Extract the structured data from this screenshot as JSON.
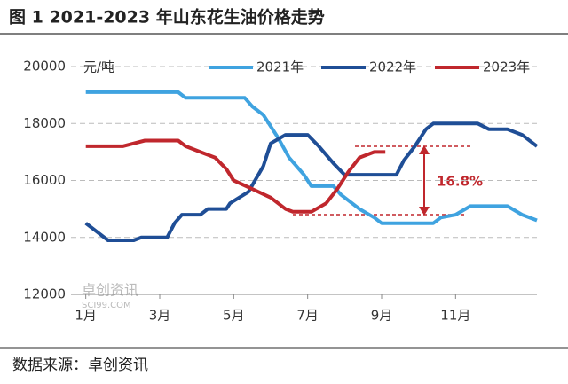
{
  "chart_data": {
    "type": "line",
    "title": "图 1 2021-2023 年山东花生油价格走势",
    "unit": "元/吨",
    "source": "数据来源：卓创资讯",
    "watermark": [
      "卓创资讯",
      "SCI99.COM"
    ],
    "annotation": "16.8%",
    "xlim": [
      0.6,
      13.2
    ],
    "xticks": [
      {
        "value": 1,
        "label": "1月"
      },
      {
        "value": 3,
        "label": "3月"
      },
      {
        "value": 5,
        "label": "5月"
      },
      {
        "value": 7,
        "label": "7月"
      },
      {
        "value": 9,
        "label": "9月"
      },
      {
        "value": 11,
        "label": "11月"
      }
    ],
    "ylim": [
      12000,
      20000
    ],
    "yticks": [
      12000,
      14000,
      16000,
      18000,
      20000
    ],
    "grid": true,
    "series": [
      {
        "name": "2021年",
        "color": "#3fa3e0",
        "x": [
          1,
          3.5,
          3.7,
          5.3,
          5.5,
          5.8,
          6.2,
          6.5,
          6.9,
          7.1,
          7.7,
          7.9,
          8.4,
          8.8,
          9,
          10.4,
          10.6,
          11,
          11.4,
          12.4,
          12.8,
          13.2
        ],
        "values": [
          19100,
          19100,
          18900,
          18900,
          18600,
          18300,
          17500,
          16800,
          16200,
          15800,
          15800,
          15500,
          15000,
          14700,
          14500,
          14500,
          14700,
          14800,
          15100,
          15100,
          14800,
          14600
        ]
      },
      {
        "name": "2022年",
        "color": "#1f4e96",
        "x": [
          1,
          1.3,
          1.6,
          2.3,
          2.5,
          3.2,
          3.4,
          3.6,
          4.1,
          4.3,
          4.8,
          4.9,
          5.4,
          5.8,
          6.0,
          6.4,
          7.0,
          7.3,
          7.7,
          8.0,
          9.4,
          9.6,
          9.9,
          10.2,
          10.4,
          11.6,
          11.9,
          12.4,
          12.8,
          13.2
        ],
        "values": [
          14500,
          14200,
          13900,
          13900,
          14000,
          14000,
          14500,
          14800,
          14800,
          15000,
          15000,
          15200,
          15600,
          16500,
          17300,
          17600,
          17600,
          17200,
          16600,
          16200,
          16200,
          16700,
          17200,
          17800,
          18000,
          18000,
          17800,
          17800,
          17600,
          17200
        ]
      },
      {
        "name": "2023年",
        "color": "#c0272d",
        "x": [
          1,
          2.0,
          2.3,
          2.6,
          3.5,
          3.7,
          4.1,
          4.5,
          4.8,
          5.0,
          5.5,
          6.0,
          6.4,
          6.6,
          7.1,
          7.5,
          7.8,
          8.1,
          8.4,
          8.8,
          9.1
        ],
        "values": [
          17200,
          17200,
          17300,
          17400,
          17400,
          17200,
          17000,
          16800,
          16400,
          16000,
          15700,
          15400,
          15000,
          14900,
          14900,
          15200,
          15700,
          16300,
          16800,
          17000,
          17000
        ]
      }
    ]
  }
}
